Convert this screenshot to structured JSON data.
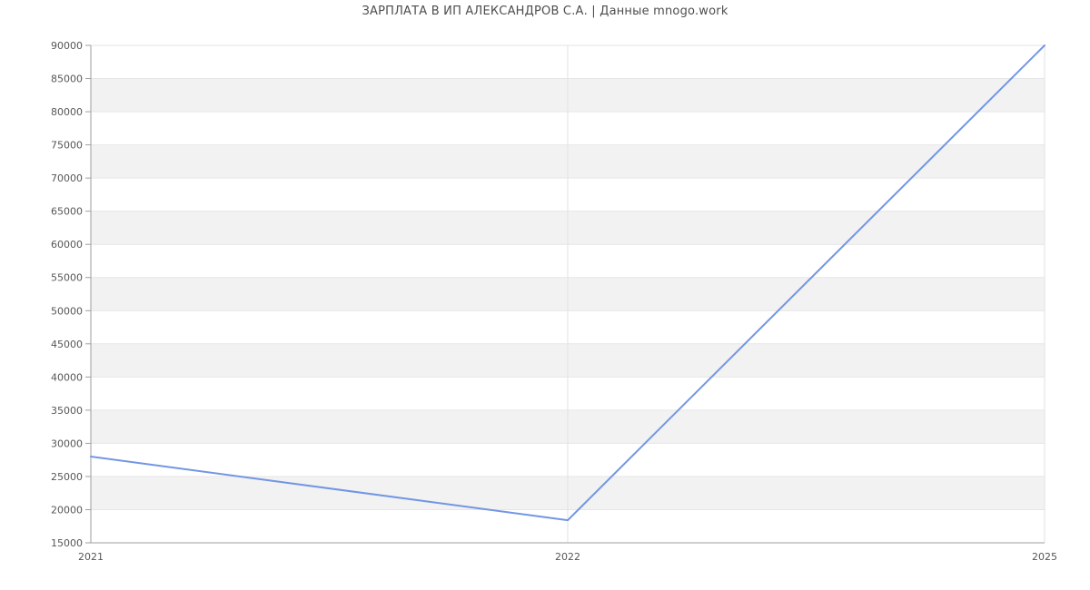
{
  "header": {
    "title": "ЗАРПЛАТА В ИП АЛЕКСАНДРОВ С.А. | Данные mnogo.work"
  },
  "chart_data": {
    "type": "line",
    "title": "ЗАРПЛАТА В ИП АЛЕКСАНДРОВ С.А. | Данные mnogo.work",
    "categories": [
      "2021",
      "2022",
      "2025"
    ],
    "values": [
      28000,
      18400,
      90000
    ],
    "xlabel": "",
    "ylabel": "",
    "ylim": [
      15000,
      90000
    ],
    "ytick_step": 5000,
    "ytick_labels": [
      "15000",
      "20000",
      "25000",
      "30000",
      "35000",
      "40000",
      "45000",
      "50000",
      "55000",
      "60000",
      "65000",
      "70000",
      "75000",
      "80000",
      "85000",
      "90000"
    ],
    "grid": true,
    "banded_background": true,
    "legend_position": "none",
    "colors": {
      "line": "#7396e3",
      "stripe": "#f2f2f2",
      "stripe_alt": "#ffffff",
      "h_gridline": "#e6e6e6",
      "v_gridline": "#e2e2e2",
      "axis": "#9e9e9e",
      "tick_text": "#565656",
      "title_text": "#4d4d4d",
      "background": "#ffffff"
    }
  }
}
